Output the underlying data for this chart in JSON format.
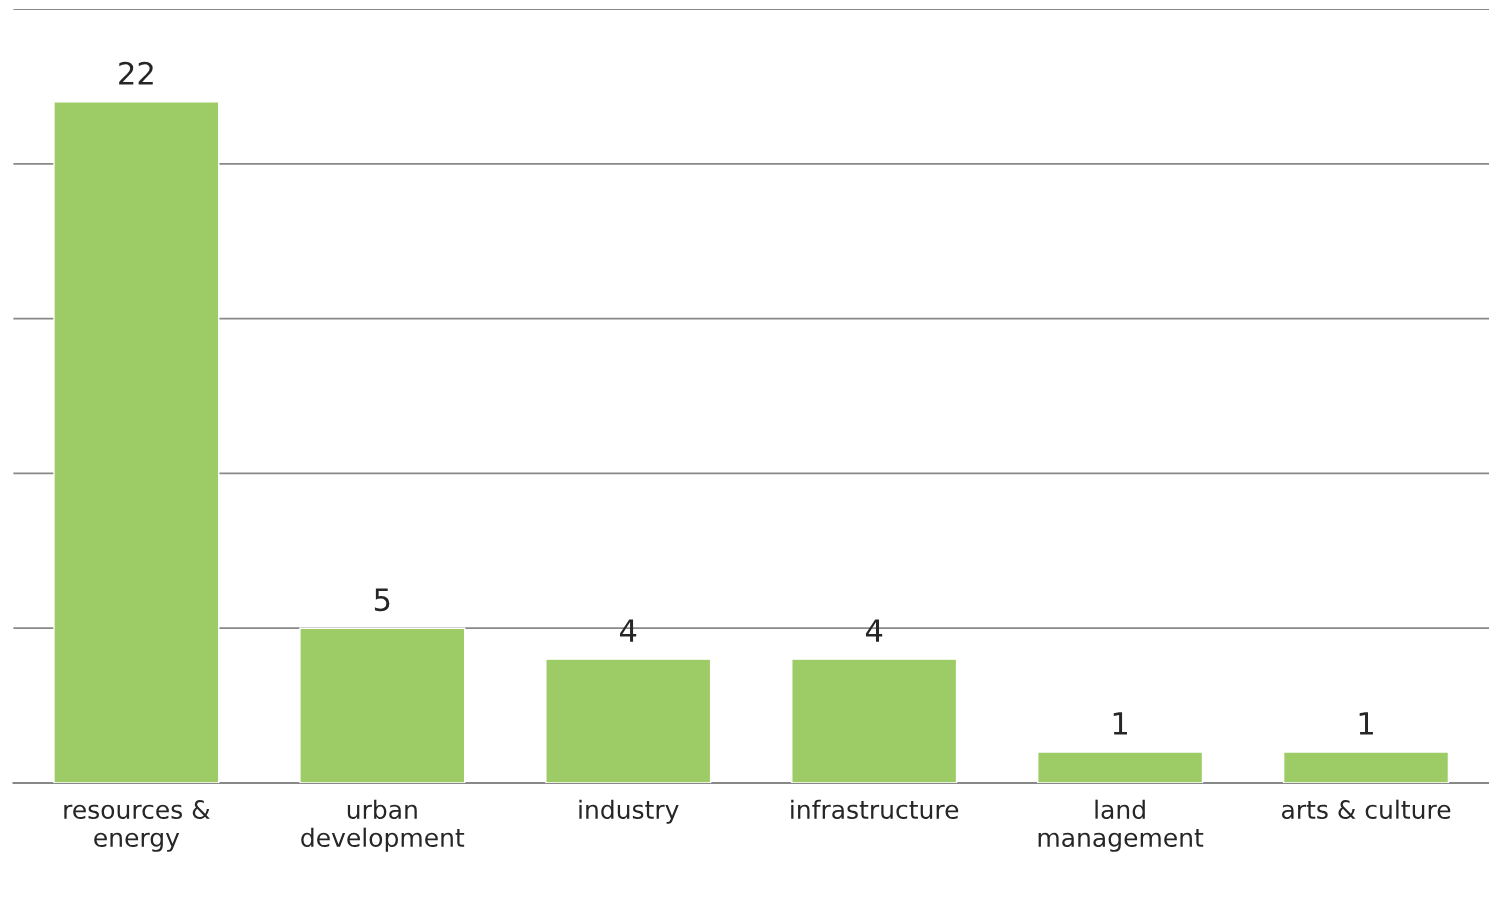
{
  "chart_data": {
    "type": "bar",
    "categories": [
      "resources &\nenergy",
      "urban\ndevelopment",
      "industry",
      "infrastructure",
      "land\nmanagement",
      "arts & culture"
    ],
    "values": [
      22,
      5,
      4,
      4,
      1,
      1
    ],
    "color": "#9dcc66",
    "ylim": [
      0,
      25
    ],
    "yticks": [
      {
        "value": 0,
        "label": null
      },
      {
        "value": 5,
        "label": null
      },
      {
        "value": 10,
        "label": null
      },
      {
        "value": 15,
        "label": null
      },
      {
        "value": 20,
        "label": null
      },
      {
        "value": 25,
        "label": null
      }
    ],
    "tick_labels": "x",
    "grid": "y",
    "data_labels": true
  }
}
